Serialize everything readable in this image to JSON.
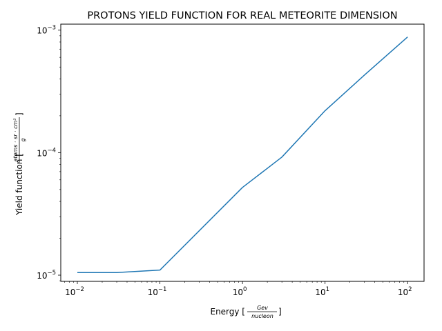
{
  "chart_data": {
    "type": "line",
    "title": "PROTONS YIELD FUNCTION FOR REAL METEORITE DIMENSION",
    "xlabel": {
      "prefix": "Energy [",
      "numerator": "Gev",
      "denominator": "nucleon",
      "suffix": "]"
    },
    "ylabel": {
      "prefix": "Yield function [",
      "numerator": "atoms · sr · cm²",
      "denominator": "g",
      "suffix": "]"
    },
    "xscale": "log",
    "yscale": "log",
    "xlim": [
      0.0063,
      158
    ],
    "ylim": [
      8.9e-06,
      0.00112
    ],
    "xticks": [
      {
        "value": 0.01,
        "base": "10",
        "exp": "−2"
      },
      {
        "value": 0.1,
        "base": "10",
        "exp": "−1"
      },
      {
        "value": 1,
        "base": "10",
        "exp": "0"
      },
      {
        "value": 10,
        "base": "10",
        "exp": "1"
      },
      {
        "value": 100,
        "base": "10",
        "exp": "2"
      }
    ],
    "yticks": [
      {
        "value": 1e-05,
        "base": "10",
        "exp": "−5"
      },
      {
        "value": 0.0001,
        "base": "10",
        "exp": "−4"
      },
      {
        "value": 0.001,
        "base": "10",
        "exp": "−3"
      }
    ],
    "grid": false,
    "series": [
      {
        "color": "#1f77b4",
        "x": [
          0.01,
          0.03,
          0.1,
          1,
          3,
          10,
          30,
          100
        ],
        "y": [
          1.05e-05,
          1.05e-05,
          1.1e-05,
          5.2e-05,
          9.2e-05,
          0.00022,
          0.00043,
          0.00088
        ]
      }
    ]
  }
}
